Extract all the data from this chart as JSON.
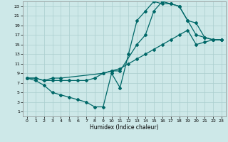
{
  "xlabel": "Humidex (Indice chaleur)",
  "xlim": [
    -0.5,
    23.5
  ],
  "ylim": [
    0,
    24
  ],
  "yticks": [
    1,
    3,
    5,
    7,
    9,
    11,
    13,
    15,
    17,
    19,
    21,
    23
  ],
  "xticks": [
    0,
    1,
    2,
    3,
    4,
    5,
    6,
    7,
    8,
    9,
    10,
    11,
    12,
    13,
    14,
    15,
    16,
    17,
    18,
    19,
    20,
    21,
    22,
    23
  ],
  "bg_color": "#cde8e8",
  "grid_color": "#aacece",
  "line_color": "#006868",
  "series": [
    {
      "x": [
        0,
        1,
        2,
        3,
        4,
        5,
        6,
        7,
        8,
        9,
        10,
        11,
        12,
        13,
        14,
        15,
        16,
        17,
        18,
        19,
        20,
        21,
        22,
        23
      ],
      "y": [
        8,
        7.5,
        6.5,
        5.0,
        4.5,
        4.0,
        3.5,
        3.0,
        2.0,
        2.0,
        9.0,
        6.0,
        13.0,
        20.0,
        22.0,
        24.0,
        23.5,
        23.5,
        23.0,
        20.0,
        17.0,
        16.5,
        16.0,
        16.0
      ]
    },
    {
      "x": [
        0,
        1,
        2,
        3,
        4,
        9,
        10,
        11,
        13,
        14,
        15,
        16,
        17,
        18,
        19,
        20,
        21,
        22,
        23
      ],
      "y": [
        8,
        8,
        7.5,
        8,
        8,
        9,
        9.5,
        9.5,
        15.0,
        17.0,
        22.0,
        24.0,
        23.5,
        23.0,
        20.0,
        19.5,
        16.5,
        16.0,
        16.0
      ]
    },
    {
      "x": [
        0,
        1,
        2,
        3,
        4,
        5,
        6,
        7,
        8,
        9,
        10,
        11,
        12,
        13,
        14,
        15,
        16,
        17,
        18,
        19,
        20,
        21,
        22,
        23
      ],
      "y": [
        8,
        8,
        7.5,
        7.5,
        7.5,
        7.5,
        7.5,
        7.5,
        8,
        9,
        9.5,
        10,
        11,
        12,
        13,
        14,
        15,
        16,
        17,
        18,
        15,
        15.5,
        16,
        16
      ]
    }
  ]
}
